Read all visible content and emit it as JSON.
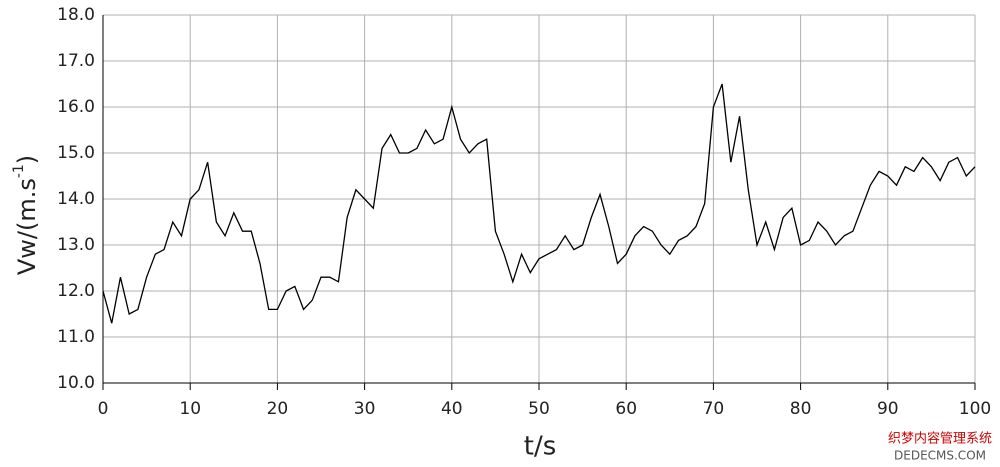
{
  "chart_data": {
    "type": "line",
    "xlabel": "t/s",
    "ylabel": {
      "text": "Vw/(m.s",
      "superscript": "-1",
      "suffix": ")"
    },
    "watermark": [
      "织梦内容管理系统",
      "DEDECMS.COM"
    ],
    "xlim": [
      0,
      100
    ],
    "xticks": [
      0,
      10,
      20,
      30,
      40,
      50,
      60,
      70,
      80,
      90,
      100
    ],
    "ylim": [
      10,
      18
    ],
    "yticks": [
      {
        "value": 10,
        "label": "10.0"
      },
      {
        "value": 11,
        "label": "11.0"
      },
      {
        "value": 12,
        "label": "12.0"
      },
      {
        "value": 13,
        "label": "13.0"
      },
      {
        "value": 14,
        "label": "14.0"
      },
      {
        "value": 15,
        "label": "15.0"
      },
      {
        "value": 16,
        "label": "16.0"
      },
      {
        "value": 17,
        "label": "17.0"
      },
      {
        "value": 18,
        "label": "18.0"
      }
    ],
    "grid": true,
    "x": [
      0,
      1,
      2,
      3,
      4,
      5,
      6,
      7,
      8,
      9,
      10,
      11,
      12,
      13,
      14,
      15,
      16,
      17,
      18,
      19,
      20,
      21,
      22,
      23,
      24,
      25,
      26,
      27,
      28,
      29,
      30,
      31,
      32,
      33,
      34,
      35,
      36,
      37,
      38,
      39,
      40,
      41,
      42,
      43,
      44,
      45,
      46,
      47,
      48,
      49,
      50,
      51,
      52,
      53,
      54,
      55,
      56,
      57,
      58,
      59,
      60,
      61,
      62,
      63,
      64,
      65,
      66,
      67,
      68,
      69,
      70,
      71,
      72,
      73,
      74,
      75,
      76,
      77,
      78,
      79,
      80,
      81,
      82,
      83,
      84,
      85,
      86,
      87,
      88,
      89,
      90,
      91,
      92,
      93,
      94,
      95,
      96,
      97,
      98,
      99,
      100
    ],
    "series": [
      {
        "color": "#000000",
        "values": [
          12.0,
          11.3,
          12.3,
          11.5,
          11.6,
          12.3,
          12.8,
          12.9,
          13.5,
          13.2,
          14.0,
          14.2,
          14.8,
          13.5,
          13.2,
          13.7,
          13.3,
          13.3,
          12.6,
          11.6,
          11.6,
          12.0,
          12.1,
          11.6,
          11.8,
          12.3,
          12.3,
          12.2,
          13.6,
          14.2,
          14.0,
          13.8,
          15.1,
          15.4,
          15.0,
          15.0,
          15.1,
          15.5,
          15.2,
          15.3,
          16.0,
          15.3,
          15.0,
          15.2,
          15.3,
          13.3,
          12.8,
          12.2,
          12.8,
          12.4,
          12.7,
          12.8,
          12.9,
          13.2,
          12.9,
          13.0,
          13.6,
          14.1,
          13.4,
          12.6,
          12.8,
          13.2,
          13.4,
          13.3,
          13.0,
          12.8,
          13.1,
          13.2,
          13.4,
          13.9,
          16.0,
          16.5,
          14.8,
          15.8,
          14.2,
          13.0,
          13.5,
          12.9,
          13.6,
          13.8,
          13.0,
          13.1,
          13.5,
          13.3,
          13.0,
          13.2,
          13.3,
          13.8,
          14.3,
          14.6,
          14.5,
          14.3,
          14.7,
          14.6,
          14.9,
          14.7,
          14.4,
          14.8,
          14.9,
          14.5,
          14.7
        ]
      }
    ]
  }
}
